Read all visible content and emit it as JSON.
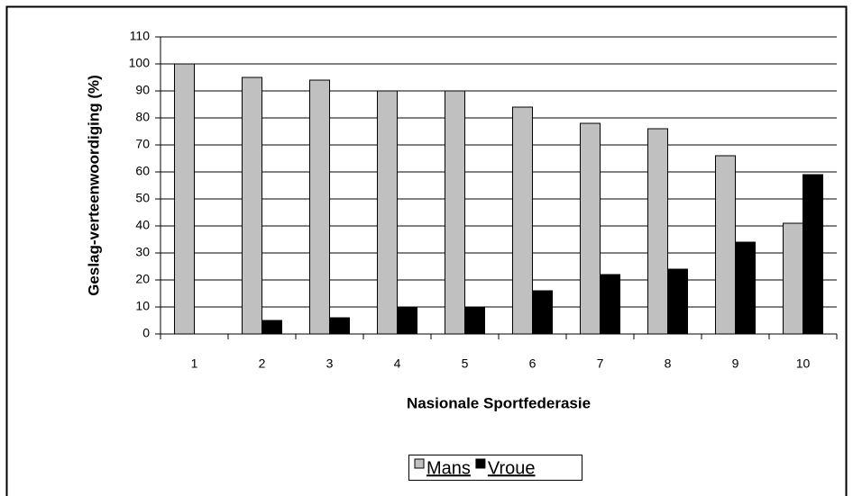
{
  "chart_data": {
    "type": "bar",
    "xlabel": "Nasionale Sportfederasie",
    "ylabel": "Geslag-verteenwoordiging (%)",
    "categories": [
      "1",
      "2",
      "3",
      "4",
      "5",
      "6",
      "7",
      "8",
      "9",
      "10"
    ],
    "series": [
      {
        "name": "Mans",
        "color": "#c0c0c0",
        "values": [
          100,
          95,
          94,
          90,
          90,
          84,
          78,
          76,
          66,
          41
        ]
      },
      {
        "name": "Vroue",
        "color": "#000000",
        "values": [
          0,
          5,
          6,
          10,
          10,
          16,
          22,
          24,
          34,
          59
        ]
      }
    ],
    "ylim": [
      0,
      110
    ],
    "yticks": [
      0,
      10,
      20,
      30,
      40,
      50,
      60,
      70,
      80,
      90,
      100,
      110
    ],
    "grid": true,
    "legend": "bottom"
  }
}
